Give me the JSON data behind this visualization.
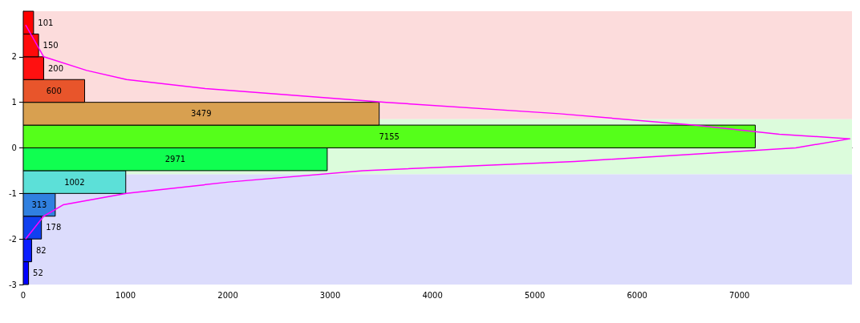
{
  "chart_data": {
    "type": "histogram",
    "orientation": "horizontal",
    "bins": [
      -3,
      -2.5,
      -2,
      -1.5,
      -1,
      -0.5,
      0,
      0.5,
      1,
      1.5,
      2,
      2.5,
      3
    ],
    "values": [
      52,
      82,
      178,
      313,
      1002,
      2971,
      7155,
      3479,
      600,
      200,
      150,
      101
    ],
    "colors": [
      "#0000ff",
      "#0a1eff",
      "#1040f0",
      "#3080e0",
      "#5ce0d8",
      "#10ff50",
      "#55ff1a",
      "#d8a050",
      "#e8552b",
      "#ff1010",
      "#ff0a0a",
      "#ff0000"
    ],
    "value_labels": [
      "52",
      "82",
      "178",
      "313",
      "1002",
      "2971",
      "7155",
      "3479",
      "600",
      "200",
      "150",
      "101"
    ],
    "series": [
      {
        "type": "line",
        "color": "#ff00ff",
        "x": [
          -2,
          -1.5,
          -1.25,
          -1,
          -0.75,
          -0.5,
          -0.3,
          0,
          0.2,
          0.3,
          0.5,
          0.75,
          1,
          1.3,
          1.5,
          1.7,
          2,
          2.7
        ],
        "values": [
          23,
          200,
          390,
          1010,
          2010,
          3320,
          5390,
          7550,
          8080,
          7390,
          6550,
          5240,
          3550,
          1780,
          1010,
          620,
          200,
          23
        ]
      }
    ],
    "bands": [
      {
        "axis": "y",
        "from": 0.63,
        "to": 3,
        "color": "#fcdcdc"
      },
      {
        "axis": "y",
        "from": -0.58,
        "to": 0.63,
        "color": "#dcfcdc"
      },
      {
        "axis": "y",
        "from": -3,
        "to": -0.58,
        "color": "#dcdcfc"
      }
    ],
    "xlim": [
      0,
      8100
    ],
    "xticks": [
      0,
      1000,
      2000,
      3000,
      4000,
      5000,
      6000,
      7000
    ],
    "ylim": [
      -3,
      3
    ],
    "yticks": [
      -3,
      -2,
      -1,
      0,
      1,
      2
    ],
    "marker": "none",
    "line_style": "solid"
  }
}
